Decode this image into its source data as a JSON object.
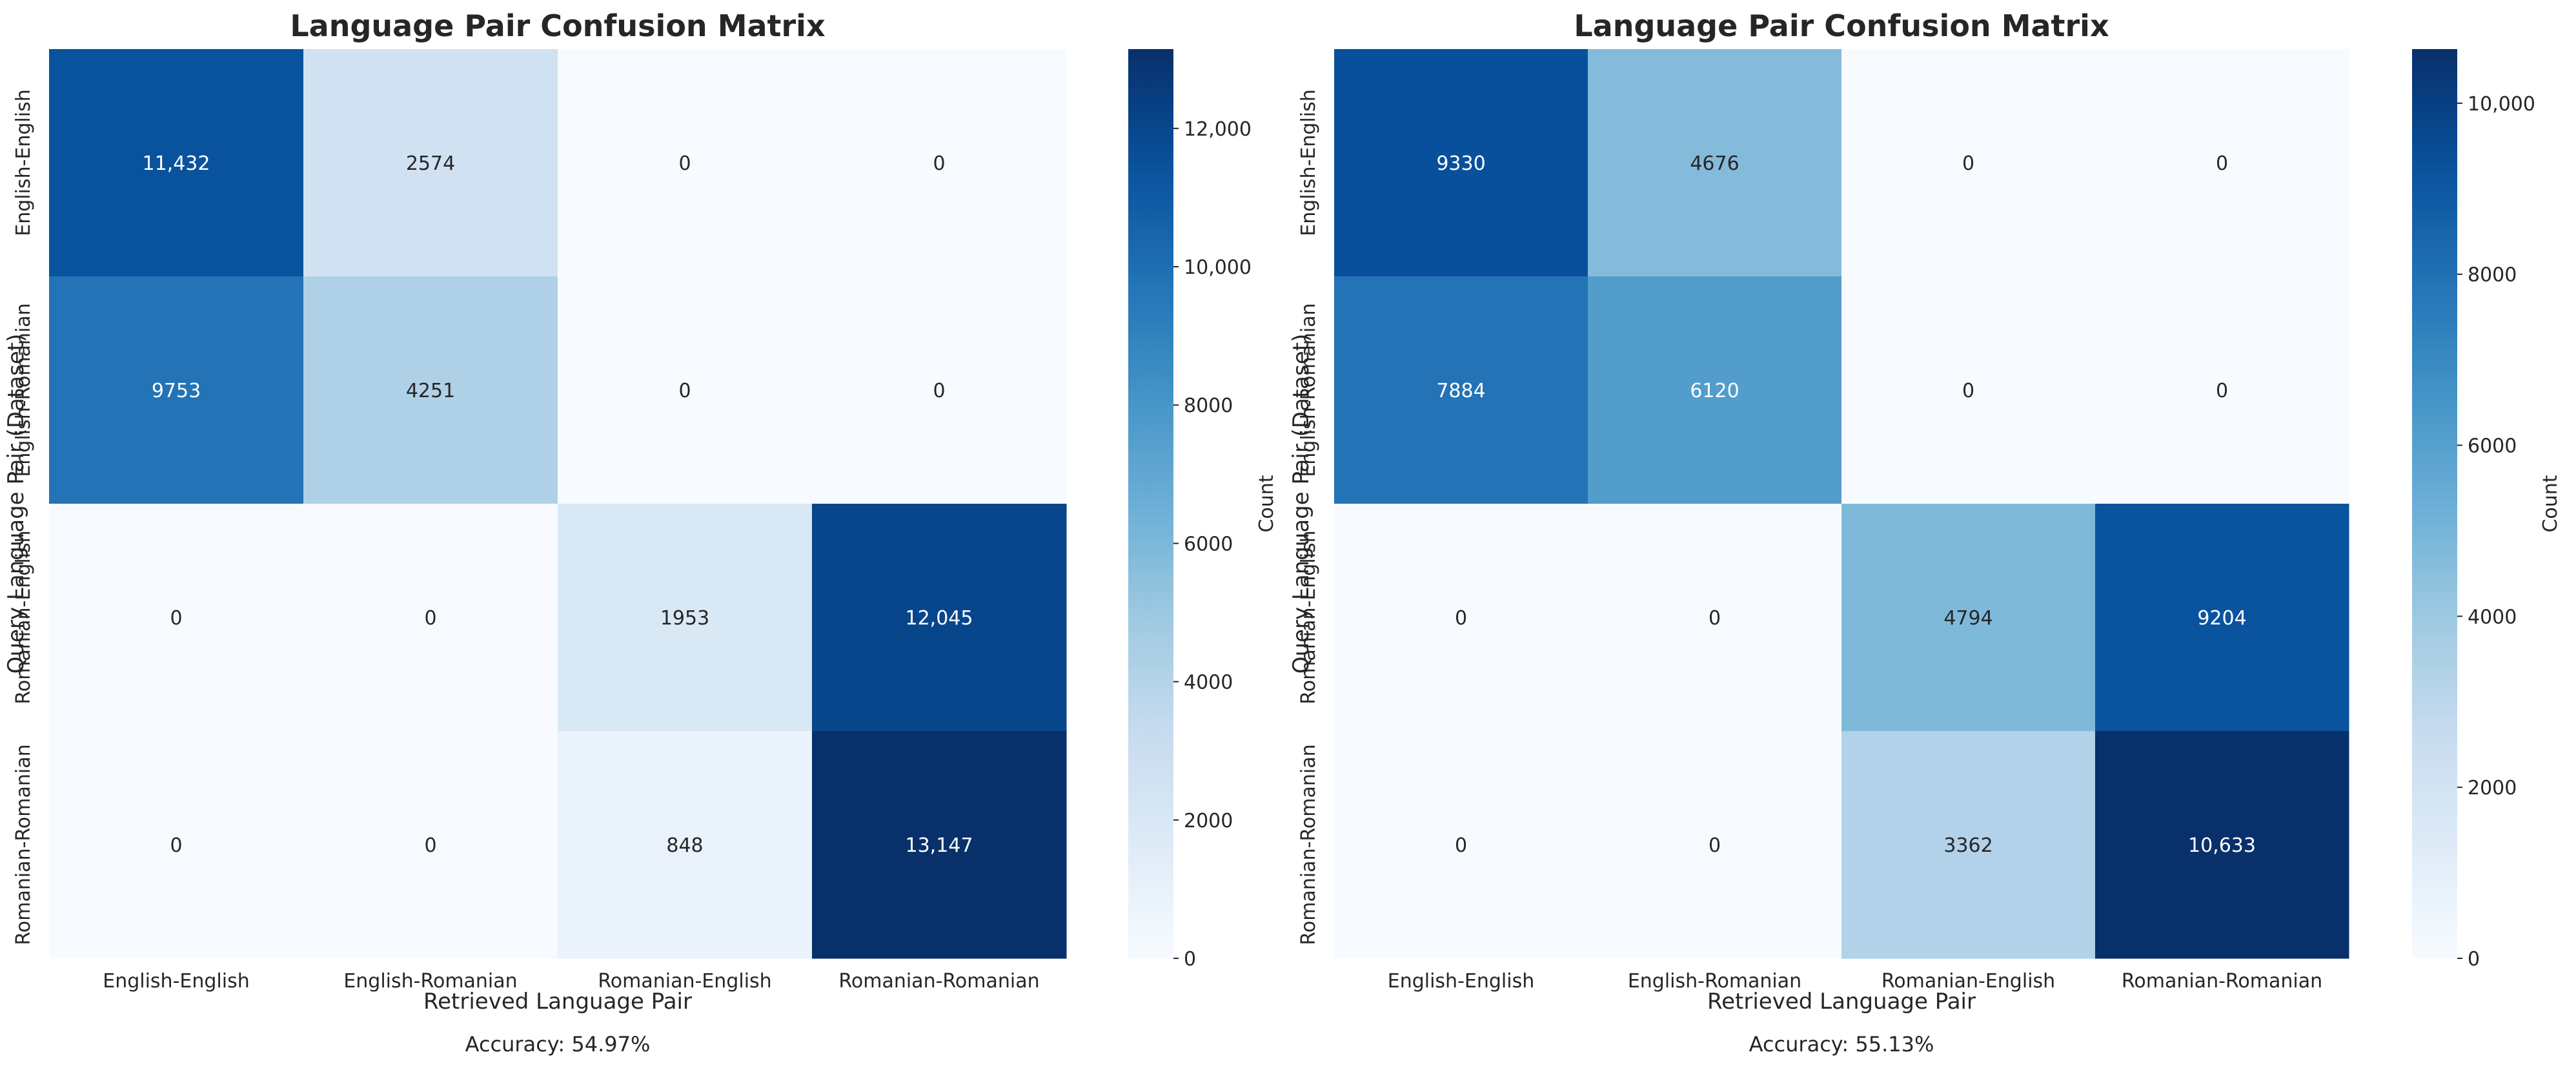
{
  "chart_data": [
    {
      "type": "heatmap",
      "title": "Language Pair Confusion Matrix",
      "xlabel": "Retrieved Language Pair",
      "ylabel": "Query Language Pair (Dataset)",
      "categories": [
        "English-English",
        "English-Romanian",
        "Romanian-English",
        "Romanian-Romanian"
      ],
      "values": [
        [
          11432,
          2574,
          0,
          0
        ],
        [
          9753,
          4251,
          0,
          0
        ],
        [
          0,
          0,
          1953,
          12045
        ],
        [
          0,
          0,
          848,
          13147
        ]
      ],
      "cell_labels": [
        [
          "11,432",
          "2574",
          "0",
          "0"
        ],
        [
          "9753",
          "4251",
          "0",
          "0"
        ],
        [
          "0",
          "0",
          "1953",
          "12,045"
        ],
        [
          "0",
          "0",
          "848",
          "13,147"
        ]
      ],
      "colorbar": {
        "label": "Count",
        "range": [
          0,
          13147
        ],
        "ticks": [
          0,
          2000,
          4000,
          6000,
          8000,
          10000,
          12000
        ],
        "tick_labels": [
          "0",
          "2000",
          "4000",
          "6000",
          "8000",
          "10,000",
          "12,000"
        ]
      },
      "colormap": "Blues",
      "annotation": "Accuracy: 54.97%"
    },
    {
      "type": "heatmap",
      "title": "Language Pair Confusion Matrix",
      "xlabel": "Retrieved Language Pair",
      "ylabel": "Query Language Pair (Dataset)",
      "categories": [
        "English-English",
        "English-Romanian",
        "Romanian-English",
        "Romanian-Romanian"
      ],
      "values": [
        [
          9330,
          4676,
          0,
          0
        ],
        [
          7884,
          6120,
          0,
          0
        ],
        [
          0,
          0,
          4794,
          9204
        ],
        [
          0,
          0,
          3362,
          10633
        ]
      ],
      "cell_labels": [
        [
          "9330",
          "4676",
          "0",
          "0"
        ],
        [
          "7884",
          "6120",
          "0",
          "0"
        ],
        [
          "0",
          "0",
          "4794",
          "9204"
        ],
        [
          "0",
          "0",
          "3362",
          "10,633"
        ]
      ],
      "colorbar": {
        "label": "Count",
        "range": [
          0,
          10633
        ],
        "ticks": [
          0,
          2000,
          4000,
          6000,
          8000,
          10000
        ],
        "tick_labels": [
          "0",
          "2000",
          "4000",
          "6000",
          "8000",
          "10,000"
        ]
      },
      "colormap": "Blues",
      "annotation": "Accuracy: 55.13%"
    }
  ]
}
